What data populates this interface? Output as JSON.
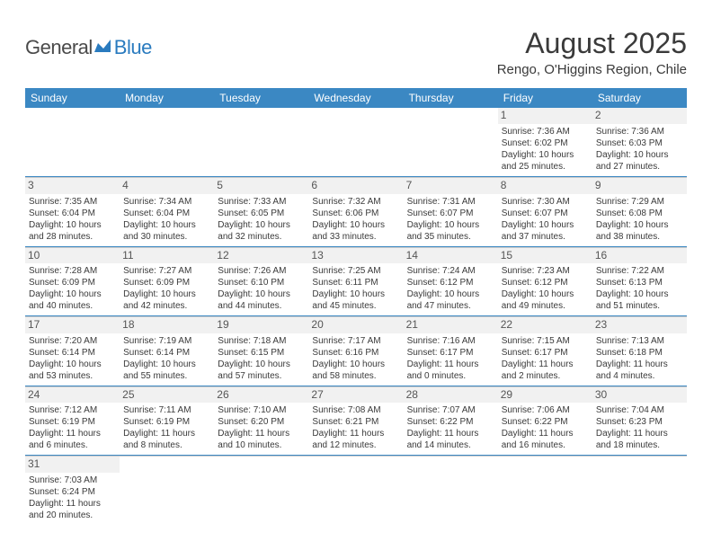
{
  "logo": {
    "general": "General",
    "blue": "Blue"
  },
  "header": {
    "title": "August 2025",
    "location": "Rengo, O'Higgins Region, Chile"
  },
  "colors": {
    "headerBar": "#3b88c3",
    "rowDivider": "#3b88c3",
    "dayNumBg": "#f1f1f1",
    "text": "#3a3a3a"
  },
  "dayNames": [
    "Sunday",
    "Monday",
    "Tuesday",
    "Wednesday",
    "Thursday",
    "Friday",
    "Saturday"
  ],
  "weeks": [
    [
      null,
      null,
      null,
      null,
      null,
      {
        "n": "1",
        "sr": "7:36 AM",
        "ss": "6:02 PM",
        "dl": "10 hours and 25 minutes."
      },
      {
        "n": "2",
        "sr": "7:36 AM",
        "ss": "6:03 PM",
        "dl": "10 hours and 27 minutes."
      }
    ],
    [
      {
        "n": "3",
        "sr": "7:35 AM",
        "ss": "6:04 PM",
        "dl": "10 hours and 28 minutes."
      },
      {
        "n": "4",
        "sr": "7:34 AM",
        "ss": "6:04 PM",
        "dl": "10 hours and 30 minutes."
      },
      {
        "n": "5",
        "sr": "7:33 AM",
        "ss": "6:05 PM",
        "dl": "10 hours and 32 minutes."
      },
      {
        "n": "6",
        "sr": "7:32 AM",
        "ss": "6:06 PM",
        "dl": "10 hours and 33 minutes."
      },
      {
        "n": "7",
        "sr": "7:31 AM",
        "ss": "6:07 PM",
        "dl": "10 hours and 35 minutes."
      },
      {
        "n": "8",
        "sr": "7:30 AM",
        "ss": "6:07 PM",
        "dl": "10 hours and 37 minutes."
      },
      {
        "n": "9",
        "sr": "7:29 AM",
        "ss": "6:08 PM",
        "dl": "10 hours and 38 minutes."
      }
    ],
    [
      {
        "n": "10",
        "sr": "7:28 AM",
        "ss": "6:09 PM",
        "dl": "10 hours and 40 minutes."
      },
      {
        "n": "11",
        "sr": "7:27 AM",
        "ss": "6:09 PM",
        "dl": "10 hours and 42 minutes."
      },
      {
        "n": "12",
        "sr": "7:26 AM",
        "ss": "6:10 PM",
        "dl": "10 hours and 44 minutes."
      },
      {
        "n": "13",
        "sr": "7:25 AM",
        "ss": "6:11 PM",
        "dl": "10 hours and 45 minutes."
      },
      {
        "n": "14",
        "sr": "7:24 AM",
        "ss": "6:12 PM",
        "dl": "10 hours and 47 minutes."
      },
      {
        "n": "15",
        "sr": "7:23 AM",
        "ss": "6:12 PM",
        "dl": "10 hours and 49 minutes."
      },
      {
        "n": "16",
        "sr": "7:22 AM",
        "ss": "6:13 PM",
        "dl": "10 hours and 51 minutes."
      }
    ],
    [
      {
        "n": "17",
        "sr": "7:20 AM",
        "ss": "6:14 PM",
        "dl": "10 hours and 53 minutes."
      },
      {
        "n": "18",
        "sr": "7:19 AM",
        "ss": "6:14 PM",
        "dl": "10 hours and 55 minutes."
      },
      {
        "n": "19",
        "sr": "7:18 AM",
        "ss": "6:15 PM",
        "dl": "10 hours and 57 minutes."
      },
      {
        "n": "20",
        "sr": "7:17 AM",
        "ss": "6:16 PM",
        "dl": "10 hours and 58 minutes."
      },
      {
        "n": "21",
        "sr": "7:16 AM",
        "ss": "6:17 PM",
        "dl": "11 hours and 0 minutes."
      },
      {
        "n": "22",
        "sr": "7:15 AM",
        "ss": "6:17 PM",
        "dl": "11 hours and 2 minutes."
      },
      {
        "n": "23",
        "sr": "7:13 AM",
        "ss": "6:18 PM",
        "dl": "11 hours and 4 minutes."
      }
    ],
    [
      {
        "n": "24",
        "sr": "7:12 AM",
        "ss": "6:19 PM",
        "dl": "11 hours and 6 minutes."
      },
      {
        "n": "25",
        "sr": "7:11 AM",
        "ss": "6:19 PM",
        "dl": "11 hours and 8 minutes."
      },
      {
        "n": "26",
        "sr": "7:10 AM",
        "ss": "6:20 PM",
        "dl": "11 hours and 10 minutes."
      },
      {
        "n": "27",
        "sr": "7:08 AM",
        "ss": "6:21 PM",
        "dl": "11 hours and 12 minutes."
      },
      {
        "n": "28",
        "sr": "7:07 AM",
        "ss": "6:22 PM",
        "dl": "11 hours and 14 minutes."
      },
      {
        "n": "29",
        "sr": "7:06 AM",
        "ss": "6:22 PM",
        "dl": "11 hours and 16 minutes."
      },
      {
        "n": "30",
        "sr": "7:04 AM",
        "ss": "6:23 PM",
        "dl": "11 hours and 18 minutes."
      }
    ],
    [
      {
        "n": "31",
        "sr": "7:03 AM",
        "ss": "6:24 PM",
        "dl": "11 hours and 20 minutes."
      },
      null,
      null,
      null,
      null,
      null,
      null
    ]
  ],
  "labels": {
    "sunrise": "Sunrise:",
    "sunset": "Sunset:",
    "daylight": "Daylight:"
  }
}
